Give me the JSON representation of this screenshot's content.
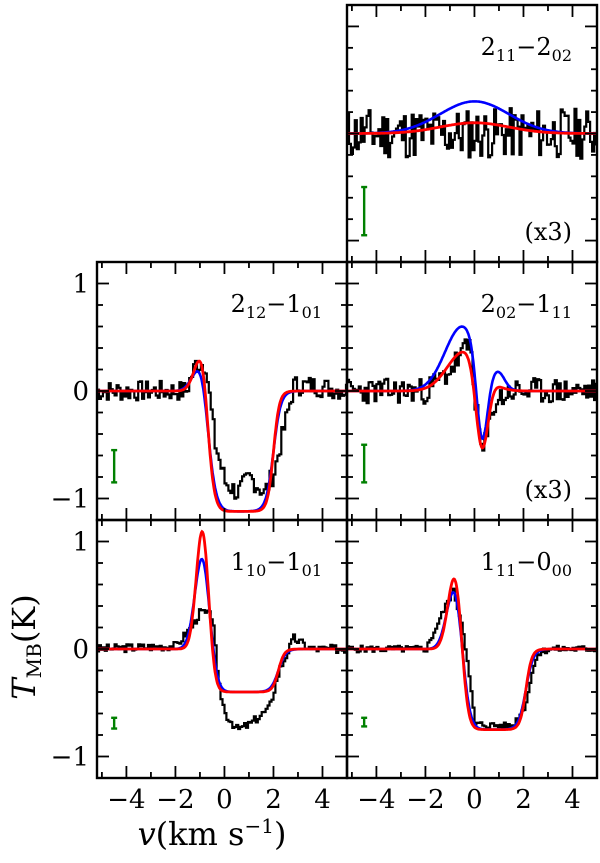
{
  "chart_data": {
    "type": "line",
    "xlabel": {
      "var": "v",
      "unit": "(km s",
      "exp": "−1",
      "close": ")"
    },
    "ylabel": {
      "var": "T",
      "sub": "MB",
      "unit": "(K)"
    },
    "xlim": [
      -5.2,
      5.0
    ],
    "ylim": [
      -1.2,
      1.2
    ],
    "xticks": [
      -4,
      -2,
      0,
      2,
      4
    ],
    "xtick_labels": [
      "−4",
      "−2",
      "0",
      "2",
      "4"
    ],
    "yticks": [
      -1,
      0,
      1
    ],
    "ytick_labels": [
      "−1",
      "0",
      "1"
    ],
    "series_colors": {
      "observed": "#000000",
      "model_blue": "#0000ff",
      "model_red": "#ff0000",
      "error_bar": "#008000"
    },
    "panels": [
      {
        "id": "p211",
        "row": 0,
        "col": 1,
        "label": {
          "a": "2",
          "a_sub": "11",
          "dash": "−",
          "b": "2",
          "b_sub": "02"
        },
        "scale_note": "(x3)",
        "error_bar": {
          "x": -4.5,
          "y_low": -0.95,
          "y_high": -0.5
        },
        "observed": {
          "base": 0.0,
          "noise": 0.3,
          "seed": 11,
          "segments": []
        },
        "blue": {
          "base": 0.0,
          "kind": "gauss",
          "a": 0.3,
          "mu": 0.0,
          "w": 1.4
        },
        "red": {
          "base": 0.0,
          "kind": "gauss",
          "a": 0.1,
          "mu": 0.0,
          "w": 1.4
        }
      },
      {
        "id": "p212",
        "row": 1,
        "col": 0,
        "label": {
          "a": "2",
          "a_sub": "12",
          "dash": "−",
          "b": "1",
          "b_sub": "01"
        },
        "scale_note": "",
        "error_bar": {
          "x": -4.5,
          "y_low": -0.85,
          "y_high": -0.55
        },
        "observed": {
          "base": 0.0,
          "noise": 0.12,
          "seed": 7,
          "segments": [
            [
              -5.2,
              0.0
            ],
            [
              -1.6,
              0.0
            ],
            [
              -1.2,
              0.25
            ],
            [
              -0.8,
              0.25
            ],
            [
              -0.4,
              -0.5
            ],
            [
              0.0,
              -0.85
            ],
            [
              0.5,
              -0.95
            ],
            [
              1.0,
              -0.8
            ],
            [
              1.6,
              -0.95
            ],
            [
              2.0,
              -0.75
            ],
            [
              2.4,
              -0.35
            ],
            [
              2.8,
              0.05
            ],
            [
              3.5,
              0.05
            ],
            [
              5.0,
              0.0
            ]
          ]
        },
        "blue": {
          "base": 0.0,
          "kind": "pcygni",
          "ep": 0.3,
          "mp": -0.9,
          "wp": 0.35,
          "da": -1.12,
          "ab_lo": -0.7,
          "ab_hi": 2.0,
          "s": 0.15
        },
        "red": {
          "base": 0.0,
          "kind": "pcygni",
          "ep": 0.38,
          "mp": -0.9,
          "wp": 0.3,
          "da": -1.12,
          "ab_lo": -0.7,
          "ab_hi": 2.0,
          "s": 0.12
        }
      },
      {
        "id": "p202",
        "row": 1,
        "col": 1,
        "label": {
          "a": "2",
          "a_sub": "02",
          "dash": "−",
          "b": "1",
          "b_sub": "11"
        },
        "scale_note": "(x3)",
        "error_bar": {
          "x": -4.5,
          "y_low": -0.85,
          "y_high": -0.5
        },
        "observed": {
          "base": 0.0,
          "noise": 0.15,
          "seed": 23,
          "segments": [
            [
              -5.2,
              0.0
            ],
            [
              -2.0,
              0.0
            ],
            [
              -1.2,
              0.15
            ],
            [
              -0.5,
              0.35
            ],
            [
              -0.2,
              0.45
            ],
            [
              0.05,
              -0.2
            ],
            [
              0.3,
              -0.6
            ],
            [
              0.8,
              -0.1
            ],
            [
              1.5,
              0.0
            ],
            [
              5.0,
              0.0
            ]
          ]
        },
        "blue": {
          "base": 0.0,
          "kind": "deriv",
          "ep": 0.6,
          "mp": -0.5,
          "wp": 0.7,
          "da": -0.75,
          "ma": 0.3,
          "wa": 0.22,
          "ep2": 0.12,
          "mp2": 1.0,
          "wp2": 0.25
        },
        "red": {
          "base": 0.0,
          "kind": "deriv",
          "ep": 0.37,
          "mp": -0.4,
          "wp": 0.7,
          "da": -0.75,
          "ma": 0.3,
          "wa": 0.25,
          "ep2": 0.0,
          "mp2": 1.0,
          "wp2": 0.25
        }
      },
      {
        "id": "p110",
        "row": 2,
        "col": 0,
        "label": {
          "a": "1",
          "a_sub": "10",
          "dash": "−",
          "b": "1",
          "b_sub": "01"
        },
        "scale_note": "",
        "error_bar": {
          "x": -4.5,
          "y_low": -0.74,
          "y_high": -0.64
        },
        "observed": {
          "base": 0.0,
          "noise": 0.05,
          "seed": 3,
          "segments": [
            [
              -5.2,
              0.0
            ],
            [
              -2.0,
              0.03
            ],
            [
              -1.4,
              0.2
            ],
            [
              -1.0,
              0.35
            ],
            [
              -0.5,
              0.3
            ],
            [
              -0.3,
              -0.3
            ],
            [
              0.0,
              -0.6
            ],
            [
              0.5,
              -0.75
            ],
            [
              1.0,
              -0.7
            ],
            [
              1.8,
              -0.55
            ],
            [
              2.2,
              -0.2
            ],
            [
              2.8,
              0.1
            ],
            [
              3.5,
              0.0
            ],
            [
              5.0,
              0.0
            ]
          ]
        },
        "blue": {
          "base": 0.0,
          "kind": "pcygni",
          "ep": 0.88,
          "mp": -0.9,
          "wp": 0.3,
          "da": -0.4,
          "ab_lo": -0.6,
          "ab_hi": 2.2,
          "s": 0.15
        },
        "red": {
          "base": 0.0,
          "kind": "pcygni",
          "ep": 1.12,
          "mp": -0.9,
          "wp": 0.25,
          "da": -0.4,
          "ab_lo": -0.6,
          "ab_hi": 2.2,
          "s": 0.12
        }
      },
      {
        "id": "p111",
        "row": 2,
        "col": 1,
        "label": {
          "a": "1",
          "a_sub": "11",
          "dash": "−",
          "b": "0",
          "b_sub": "00"
        },
        "scale_note": "",
        "error_bar": {
          "x": -4.5,
          "y_low": -0.72,
          "y_high": -0.64
        },
        "observed": {
          "base": 0.0,
          "noise": 0.04,
          "seed": 5,
          "segments": [
            [
              -5.2,
              0.0
            ],
            [
              -2.0,
              0.0
            ],
            [
              -1.3,
              0.35
            ],
            [
              -0.9,
              0.55
            ],
            [
              -0.5,
              0.2
            ],
            [
              0.0,
              -0.7
            ],
            [
              1.5,
              -0.72
            ],
            [
              2.0,
              -0.55
            ],
            [
              2.5,
              -0.05
            ],
            [
              3.0,
              0.0
            ],
            [
              5.0,
              0.0
            ]
          ]
        },
        "blue": {
          "base": 0.0,
          "kind": "pcygni",
          "ep": 0.6,
          "mp": -0.8,
          "wp": 0.32,
          "da": -0.75,
          "ab_lo": -0.5,
          "ab_hi": 2.1,
          "s": 0.15
        },
        "red": {
          "base": 0.0,
          "kind": "pcygni",
          "ep": 0.7,
          "mp": -0.8,
          "wp": 0.28,
          "da": -0.75,
          "ab_lo": -0.5,
          "ab_hi": 2.1,
          "s": 0.12
        }
      }
    ]
  }
}
